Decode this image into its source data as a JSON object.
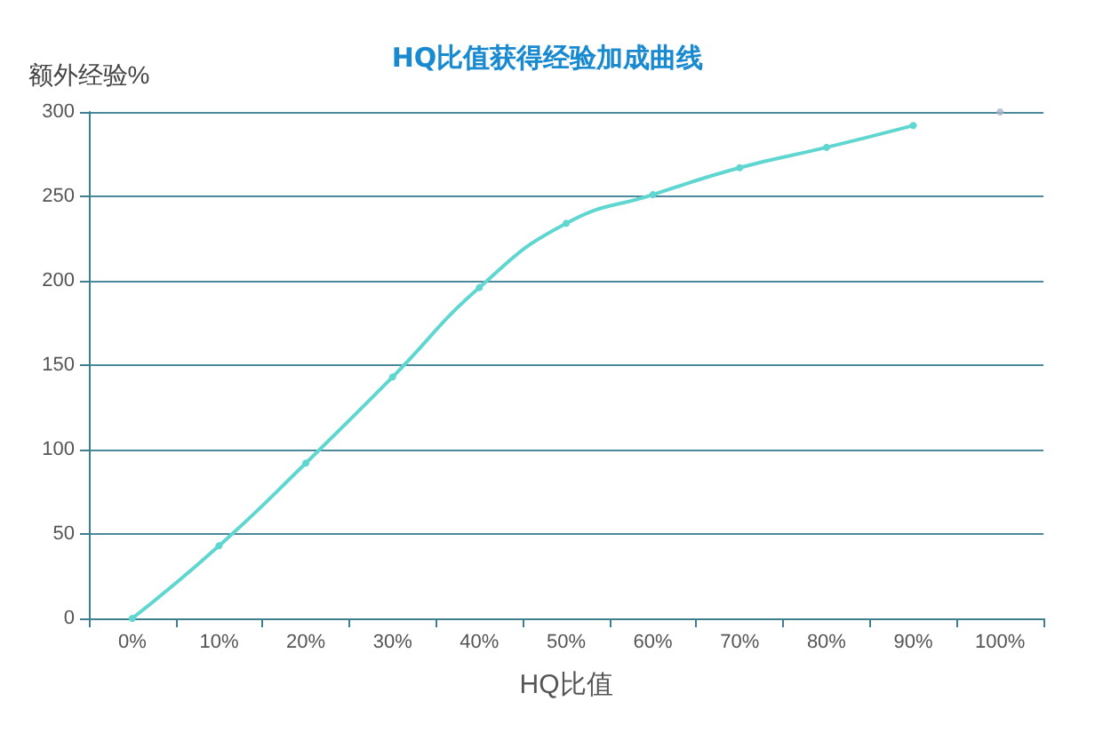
{
  "chart_data": {
    "type": "line",
    "title": "HQ比值获得经验加成曲线",
    "xlabel": "HQ比值",
    "ylabel": "额外经验%",
    "categories": [
      "0%",
      "10%",
      "20%",
      "30%",
      "40%",
      "50%",
      "60%",
      "70%",
      "80%",
      "90%",
      "100%"
    ],
    "series": [
      {
        "color": "#5fd6d0",
        "values": [
          0,
          43,
          92,
          143,
          196,
          234,
          251,
          267,
          279,
          292,
          null
        ]
      },
      {
        "type": "scatter",
        "color": "#a9b3cc",
        "values": [
          null,
          null,
          null,
          null,
          null,
          null,
          null,
          null,
          null,
          null,
          300
        ]
      }
    ],
    "ylim": [
      0,
      300
    ],
    "yticks": [
      0,
      50,
      100,
      150,
      200,
      250,
      300
    ],
    "grid": "y",
    "marker": "circle"
  }
}
